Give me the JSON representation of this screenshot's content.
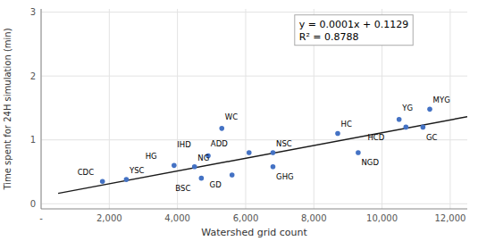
{
  "chart_data": {
    "type": "scatter",
    "xlabel": "Watershed grid count",
    "ylabel": "Time spent for 24H simulation (min)",
    "annotations": [
      "y = 0.0001x + 0.1129",
      "R² = 0.8788"
    ],
    "series": [
      {
        "type": "scatter",
        "color": "#4472c4",
        "x": [
          1800,
          2500,
          3900,
          4500,
          4700,
          4900,
          5300,
          5600,
          6100,
          6800,
          6800,
          8700,
          9300,
          10500,
          10700,
          11200,
          11400
        ],
        "values": [
          0.35,
          0.38,
          0.6,
          0.58,
          0.4,
          0.75,
          1.18,
          0.45,
          0.8,
          0.8,
          0.58,
          1.1,
          0.8,
          1.32,
          1.2,
          1.2,
          1.48
        ],
        "labels": [
          "CDC",
          "YSC",
          "HG",
          "NG",
          "BSC",
          "IHD",
          "WC",
          "GD",
          "ADD",
          "NSC",
          "GHG",
          "HC",
          "NGD",
          "YG",
          "HCD",
          "GC",
          "MYG"
        ]
      },
      {
        "type": "line",
        "color": "#1a1a1a",
        "x": [
          500,
          12500
        ],
        "values": [
          0.1629,
          1.3629
        ]
      }
    ],
    "xlim": [
      0,
      12500
    ],
    "ylim": [
      -0.08,
      3.05
    ],
    "xticks": [
      {
        "value": 0,
        "label": "-"
      },
      {
        "value": 2000,
        "label": "2,000"
      },
      {
        "value": 4000,
        "label": "4,000"
      },
      {
        "value": 6000,
        "label": "6,000"
      },
      {
        "value": 8000,
        "label": "8,000"
      },
      {
        "value": 10000,
        "label": "10,000"
      },
      {
        "value": 12000,
        "label": "12,000"
      }
    ],
    "yticks": [
      0,
      1,
      2,
      3
    ],
    "grid": true
  }
}
